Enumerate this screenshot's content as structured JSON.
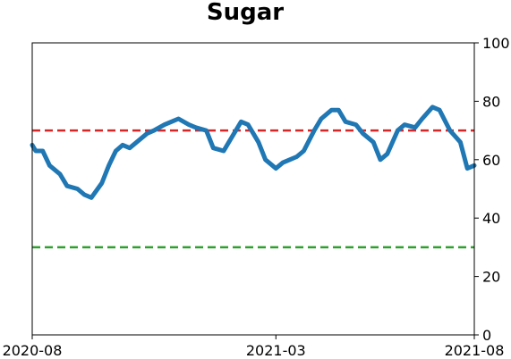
{
  "chart_data": {
    "type": "line",
    "title": "Sugar",
    "xlabel": "",
    "ylabel": "",
    "ylim": [
      0,
      100
    ],
    "y_axis_side": "right",
    "y_ticks": [
      "0",
      "20",
      "40",
      "60",
      "80",
      "100"
    ],
    "x_ticks": [
      "2020-08",
      "2021-03",
      "2021-08"
    ],
    "grid": false,
    "series": [
      {
        "color": "#1f77b4",
        "x": [
          0.0,
          0.1,
          0.3,
          0.5,
          0.8,
          1.0,
          1.3,
          1.5,
          1.7,
          2.0,
          2.2,
          2.4,
          2.6,
          2.8,
          3.0,
          3.3,
          3.5,
          3.8,
          4.0,
          4.2,
          4.5,
          4.7,
          5.0,
          5.2,
          5.5,
          5.7,
          6.0,
          6.2,
          6.5,
          6.7,
          7.0,
          7.2,
          7.4,
          7.6,
          7.8,
          8.1,
          8.3,
          8.6,
          8.8,
          9.0,
          9.3,
          9.5,
          9.8,
          10.0,
          10.2,
          10.5,
          10.7,
          11.0,
          11.2,
          11.5,
          11.7,
          12.0,
          12.3,
          12.5,
          12.7
        ],
        "values": [
          65,
          63,
          63,
          58,
          55,
          51,
          50,
          48,
          47,
          52,
          58,
          63,
          65,
          64,
          66,
          69,
          70,
          72,
          73,
          74,
          72,
          71,
          70,
          64,
          63,
          67,
          73,
          72,
          66,
          60,
          57,
          59,
          60,
          61,
          63,
          70,
          74,
          77,
          77,
          73,
          72,
          69,
          66,
          60,
          62,
          70,
          72,
          71,
          74,
          78,
          77,
          70,
          66,
          57,
          58
        ]
      }
    ],
    "reference_lines": [
      {
        "y": 70,
        "color": "#d62728",
        "style": "dashed"
      },
      {
        "y": 30,
        "color": "#2ca02c",
        "style": "dashed"
      }
    ]
  }
}
